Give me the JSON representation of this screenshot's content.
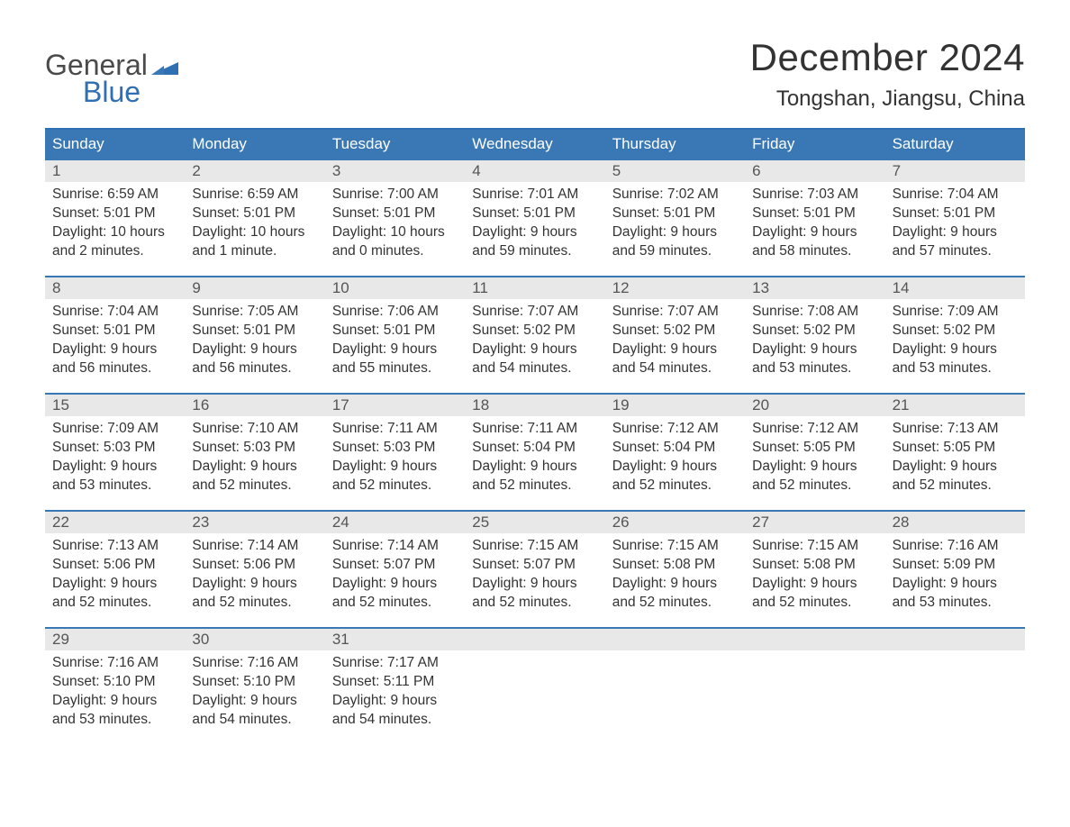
{
  "logo": {
    "line1": "General",
    "line2": "Blue"
  },
  "title": "December 2024",
  "subtitle": "Tongshan, Jiangsu, China",
  "colors": {
    "header_bg": "#3a78b5",
    "header_text": "#ffffff",
    "week_border": "#3a78b5",
    "daynum_bg": "#e8e8e8",
    "text": "#333333",
    "logo_gray": "#4a4a4a",
    "logo_blue": "#2f6fb3"
  },
  "day_headers": [
    "Sunday",
    "Monday",
    "Tuesday",
    "Wednesday",
    "Thursday",
    "Friday",
    "Saturday"
  ],
  "weeks": [
    [
      {
        "n": "1",
        "sr": "Sunrise: 6:59 AM",
        "ss": "Sunset: 5:01 PM",
        "d1": "Daylight: 10 hours",
        "d2": "and 2 minutes."
      },
      {
        "n": "2",
        "sr": "Sunrise: 6:59 AM",
        "ss": "Sunset: 5:01 PM",
        "d1": "Daylight: 10 hours",
        "d2": "and 1 minute."
      },
      {
        "n": "3",
        "sr": "Sunrise: 7:00 AM",
        "ss": "Sunset: 5:01 PM",
        "d1": "Daylight: 10 hours",
        "d2": "and 0 minutes."
      },
      {
        "n": "4",
        "sr": "Sunrise: 7:01 AM",
        "ss": "Sunset: 5:01 PM",
        "d1": "Daylight: 9 hours",
        "d2": "and 59 minutes."
      },
      {
        "n": "5",
        "sr": "Sunrise: 7:02 AM",
        "ss": "Sunset: 5:01 PM",
        "d1": "Daylight: 9 hours",
        "d2": "and 59 minutes."
      },
      {
        "n": "6",
        "sr": "Sunrise: 7:03 AM",
        "ss": "Sunset: 5:01 PM",
        "d1": "Daylight: 9 hours",
        "d2": "and 58 minutes."
      },
      {
        "n": "7",
        "sr": "Sunrise: 7:04 AM",
        "ss": "Sunset: 5:01 PM",
        "d1": "Daylight: 9 hours",
        "d2": "and 57 minutes."
      }
    ],
    [
      {
        "n": "8",
        "sr": "Sunrise: 7:04 AM",
        "ss": "Sunset: 5:01 PM",
        "d1": "Daylight: 9 hours",
        "d2": "and 56 minutes."
      },
      {
        "n": "9",
        "sr": "Sunrise: 7:05 AM",
        "ss": "Sunset: 5:01 PM",
        "d1": "Daylight: 9 hours",
        "d2": "and 56 minutes."
      },
      {
        "n": "10",
        "sr": "Sunrise: 7:06 AM",
        "ss": "Sunset: 5:01 PM",
        "d1": "Daylight: 9 hours",
        "d2": "and 55 minutes."
      },
      {
        "n": "11",
        "sr": "Sunrise: 7:07 AM",
        "ss": "Sunset: 5:02 PM",
        "d1": "Daylight: 9 hours",
        "d2": "and 54 minutes."
      },
      {
        "n": "12",
        "sr": "Sunrise: 7:07 AM",
        "ss": "Sunset: 5:02 PM",
        "d1": "Daylight: 9 hours",
        "d2": "and 54 minutes."
      },
      {
        "n": "13",
        "sr": "Sunrise: 7:08 AM",
        "ss": "Sunset: 5:02 PM",
        "d1": "Daylight: 9 hours",
        "d2": "and 53 minutes."
      },
      {
        "n": "14",
        "sr": "Sunrise: 7:09 AM",
        "ss": "Sunset: 5:02 PM",
        "d1": "Daylight: 9 hours",
        "d2": "and 53 minutes."
      }
    ],
    [
      {
        "n": "15",
        "sr": "Sunrise: 7:09 AM",
        "ss": "Sunset: 5:03 PM",
        "d1": "Daylight: 9 hours",
        "d2": "and 53 minutes."
      },
      {
        "n": "16",
        "sr": "Sunrise: 7:10 AM",
        "ss": "Sunset: 5:03 PM",
        "d1": "Daylight: 9 hours",
        "d2": "and 52 minutes."
      },
      {
        "n": "17",
        "sr": "Sunrise: 7:11 AM",
        "ss": "Sunset: 5:03 PM",
        "d1": "Daylight: 9 hours",
        "d2": "and 52 minutes."
      },
      {
        "n": "18",
        "sr": "Sunrise: 7:11 AM",
        "ss": "Sunset: 5:04 PM",
        "d1": "Daylight: 9 hours",
        "d2": "and 52 minutes."
      },
      {
        "n": "19",
        "sr": "Sunrise: 7:12 AM",
        "ss": "Sunset: 5:04 PM",
        "d1": "Daylight: 9 hours",
        "d2": "and 52 minutes."
      },
      {
        "n": "20",
        "sr": "Sunrise: 7:12 AM",
        "ss": "Sunset: 5:05 PM",
        "d1": "Daylight: 9 hours",
        "d2": "and 52 minutes."
      },
      {
        "n": "21",
        "sr": "Sunrise: 7:13 AM",
        "ss": "Sunset: 5:05 PM",
        "d1": "Daylight: 9 hours",
        "d2": "and 52 minutes."
      }
    ],
    [
      {
        "n": "22",
        "sr": "Sunrise: 7:13 AM",
        "ss": "Sunset: 5:06 PM",
        "d1": "Daylight: 9 hours",
        "d2": "and 52 minutes."
      },
      {
        "n": "23",
        "sr": "Sunrise: 7:14 AM",
        "ss": "Sunset: 5:06 PM",
        "d1": "Daylight: 9 hours",
        "d2": "and 52 minutes."
      },
      {
        "n": "24",
        "sr": "Sunrise: 7:14 AM",
        "ss": "Sunset: 5:07 PM",
        "d1": "Daylight: 9 hours",
        "d2": "and 52 minutes."
      },
      {
        "n": "25",
        "sr": "Sunrise: 7:15 AM",
        "ss": "Sunset: 5:07 PM",
        "d1": "Daylight: 9 hours",
        "d2": "and 52 minutes."
      },
      {
        "n": "26",
        "sr": "Sunrise: 7:15 AM",
        "ss": "Sunset: 5:08 PM",
        "d1": "Daylight: 9 hours",
        "d2": "and 52 minutes."
      },
      {
        "n": "27",
        "sr": "Sunrise: 7:15 AM",
        "ss": "Sunset: 5:08 PM",
        "d1": "Daylight: 9 hours",
        "d2": "and 52 minutes."
      },
      {
        "n": "28",
        "sr": "Sunrise: 7:16 AM",
        "ss": "Sunset: 5:09 PM",
        "d1": "Daylight: 9 hours",
        "d2": "and 53 minutes."
      }
    ],
    [
      {
        "n": "29",
        "sr": "Sunrise: 7:16 AM",
        "ss": "Sunset: 5:10 PM",
        "d1": "Daylight: 9 hours",
        "d2": "and 53 minutes."
      },
      {
        "n": "30",
        "sr": "Sunrise: 7:16 AM",
        "ss": "Sunset: 5:10 PM",
        "d1": "Daylight: 9 hours",
        "d2": "and 54 minutes."
      },
      {
        "n": "31",
        "sr": "Sunrise: 7:17 AM",
        "ss": "Sunset: 5:11 PM",
        "d1": "Daylight: 9 hours",
        "d2": "and 54 minutes."
      },
      null,
      null,
      null,
      null
    ]
  ]
}
